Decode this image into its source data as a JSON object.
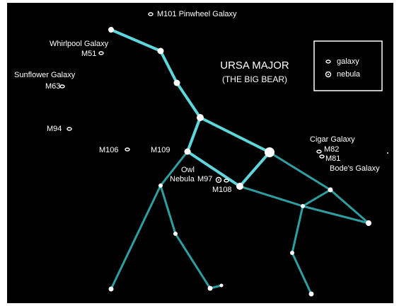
{
  "title": "URSA MAJOR",
  "subtitle": "(THE BIG BEAR)",
  "legend": {
    "galaxy": "galaxy",
    "nebula": "nebula"
  },
  "objects": {
    "m101": "M101 Pinwheel Galaxy",
    "whirlpool": "Whirlpool Galaxy",
    "m51": "M51",
    "sunflower": "Sunflower Galaxy",
    "m63": "M63",
    "m94": "M94",
    "m106": "M106",
    "m109": "M109",
    "owl": "Owl",
    "nebula": "Nebula",
    "m97": "M97",
    "m108": "M108",
    "cigar": "Cigar Galaxy",
    "m82": "M82",
    "m81": "M81",
    "bode": "Bode's Galaxy"
  }
}
